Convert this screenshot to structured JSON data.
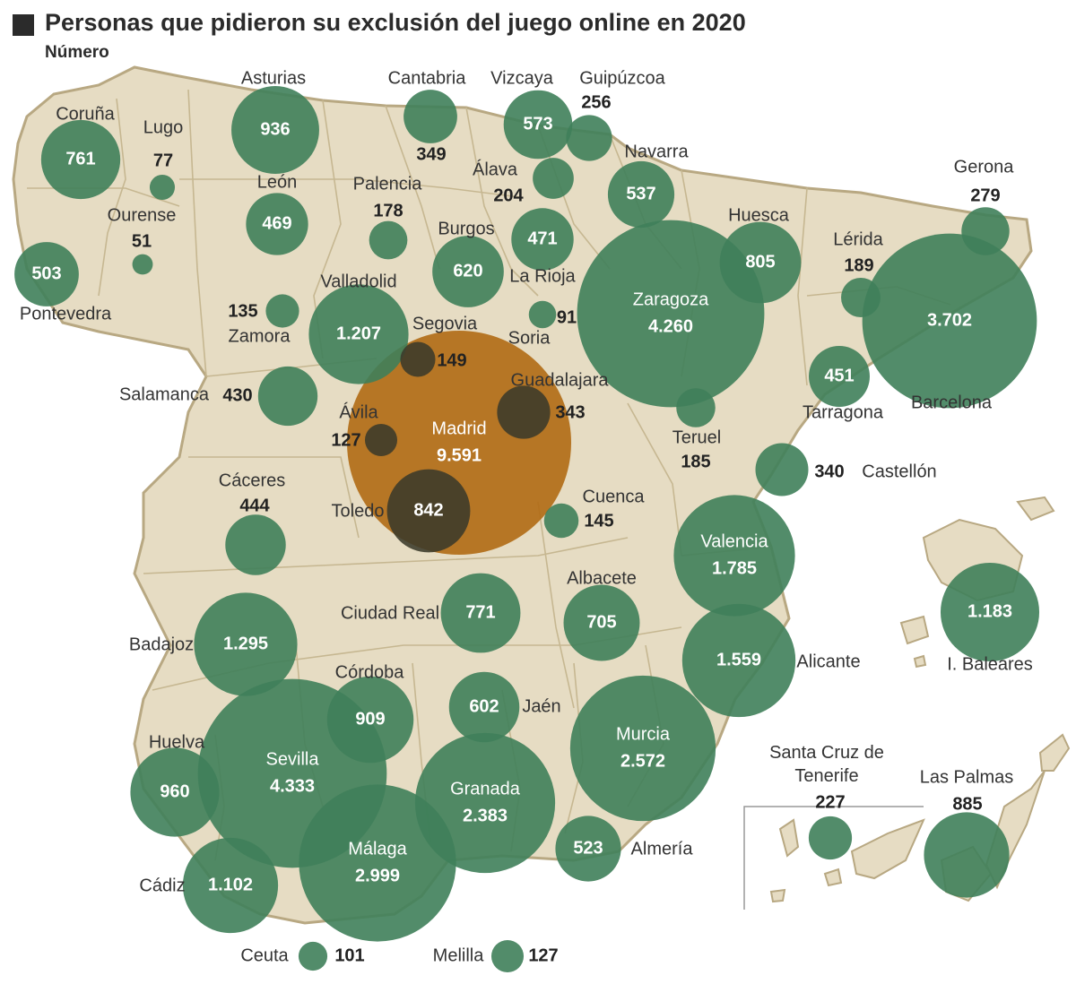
{
  "header": {
    "title": "Personas que pidieron su exclusión del juego online en 2020",
    "subtitle": "Número"
  },
  "colors": {
    "land": "#e6dcc3",
    "border": "#b8a882",
    "bubble": "#3f7f5a",
    "highlight": "#b06a14",
    "dark_bubble": "#3b3a2a"
  },
  "provinces": [
    {
      "id": "coruna",
      "name": "Coruña",
      "value": 761,
      "value_label": "761",
      "inside": true
    },
    {
      "id": "lugo",
      "name": "Lugo",
      "value": 77,
      "value_label": "77",
      "inside": false
    },
    {
      "id": "ourense",
      "name": "Ourense",
      "value": 51,
      "value_label": "51",
      "inside": false
    },
    {
      "id": "pontevedra",
      "name": "Pontevedra",
      "value": 503,
      "value_label": "503",
      "inside": true
    },
    {
      "id": "asturias",
      "name": "Asturias",
      "value": 936,
      "value_label": "936",
      "inside": true
    },
    {
      "id": "cantabria",
      "name": "Cantabria",
      "value": 349,
      "value_label": "349",
      "inside": false
    },
    {
      "id": "vizcaya",
      "name": "Vizcaya",
      "value": 573,
      "value_label": "573",
      "inside": true
    },
    {
      "id": "guipuzcoa",
      "name": "Guipúzcoa",
      "value": 256,
      "value_label": "256",
      "inside": false
    },
    {
      "id": "alava",
      "name": "Álava",
      "value": 204,
      "value_label": "204",
      "inside": false
    },
    {
      "id": "navarra",
      "name": "Navarra",
      "value": 537,
      "value_label": "537",
      "inside": true
    },
    {
      "id": "leon",
      "name": "León",
      "value": 469,
      "value_label": "469",
      "inside": true
    },
    {
      "id": "palencia",
      "name": "Palencia",
      "value": 178,
      "value_label": "178",
      "inside": false
    },
    {
      "id": "burgos",
      "name": "Burgos",
      "value": 620,
      "value_label": "620",
      "inside": true
    },
    {
      "id": "larioja",
      "name": "La Rioja",
      "value": 471,
      "value_label": "471",
      "inside": true
    },
    {
      "id": "gerona",
      "name": "Gerona",
      "value": 279,
      "value_label": "279",
      "inside": false
    },
    {
      "id": "huesca",
      "name": "Huesca",
      "value": 805,
      "value_label": "805",
      "inside": true
    },
    {
      "id": "lerida",
      "name": "Lérida",
      "value": 189,
      "value_label": "189",
      "inside": false
    },
    {
      "id": "zaragoza",
      "name": "Zaragoza",
      "value": 4260,
      "value_label": "4.260",
      "inside": true
    },
    {
      "id": "barcelona",
      "name": "Barcelona",
      "value": 3702,
      "value_label": "3.702",
      "inside": true
    },
    {
      "id": "zamora",
      "name": "Zamora",
      "value": 135,
      "value_label": "135",
      "inside": false
    },
    {
      "id": "valladolid",
      "name": "Valladolid",
      "value": 1207,
      "value_label": "1.207",
      "inside": true
    },
    {
      "id": "segovia",
      "name": "Segovia",
      "value": 149,
      "value_label": "149",
      "inside": false
    },
    {
      "id": "soria",
      "name": "Soria",
      "value": 91,
      "value_label": "91",
      "inside": false
    },
    {
      "id": "salamanca",
      "name": "Salamanca",
      "value": 430,
      "value_label": "430",
      "inside": false
    },
    {
      "id": "avila",
      "name": "Ávila",
      "value": 127,
      "value_label": "127",
      "inside": false
    },
    {
      "id": "madrid",
      "name": "Madrid",
      "value": 9591,
      "value_label": "9.591",
      "inside": true
    },
    {
      "id": "guadalajara",
      "name": "Guadalajara",
      "value": 343,
      "value_label": "343",
      "inside": false
    },
    {
      "id": "teruel",
      "name": "Teruel",
      "value": 185,
      "value_label": "185",
      "inside": false
    },
    {
      "id": "tarragona",
      "name": "Tarragona",
      "value": 451,
      "value_label": "451",
      "inside": true
    },
    {
      "id": "castellon",
      "name": "Castellón",
      "value": 340,
      "value_label": "340",
      "inside": false
    },
    {
      "id": "caceres",
      "name": "Cáceres",
      "value": 444,
      "value_label": "444",
      "inside": false
    },
    {
      "id": "toledo",
      "name": "Toledo",
      "value": 842,
      "value_label": "842",
      "inside": true
    },
    {
      "id": "cuenca",
      "name": "Cuenca",
      "value": 145,
      "value_label": "145",
      "inside": false
    },
    {
      "id": "valencia",
      "name": "Valencia",
      "value": 1785,
      "value_label": "1.785",
      "inside": true
    },
    {
      "id": "baleares",
      "name": "I. Baleares",
      "value": 1183,
      "value_label": "1.183",
      "inside": true
    },
    {
      "id": "badajoz",
      "name": "Badajoz",
      "value": 1295,
      "value_label": "1.295",
      "inside": true
    },
    {
      "id": "ciudadreal",
      "name": "Ciudad Real",
      "value": 771,
      "value_label": "771",
      "inside": true
    },
    {
      "id": "albacete",
      "name": "Albacete",
      "value": 705,
      "value_label": "705",
      "inside": true
    },
    {
      "id": "alicante",
      "name": "Alicante",
      "value": 1559,
      "value_label": "1.559",
      "inside": true
    },
    {
      "id": "cordoba",
      "name": "Córdoba",
      "value": 909,
      "value_label": "909",
      "inside": true
    },
    {
      "id": "jaen",
      "name": "Jaén",
      "value": 602,
      "value_label": "602",
      "inside": true
    },
    {
      "id": "huelva",
      "name": "Huelva",
      "value": 960,
      "value_label": "960",
      "inside": true
    },
    {
      "id": "sevilla",
      "name": "Sevilla",
      "value": 4333,
      "value_label": "4.333",
      "inside": true
    },
    {
      "id": "murcia",
      "name": "Murcia",
      "value": 2572,
      "value_label": "2.572",
      "inside": true
    },
    {
      "id": "granada",
      "name": "Granada",
      "value": 2383,
      "value_label": "2.383",
      "inside": true
    },
    {
      "id": "malaga",
      "name": "Málaga",
      "value": 2999,
      "value_label": "2.999",
      "inside": true
    },
    {
      "id": "almeria",
      "name": "Almería",
      "value": 523,
      "value_label": "523",
      "inside": true
    },
    {
      "id": "cadiz",
      "name": "Cádiz",
      "value": 1102,
      "value_label": "1.102",
      "inside": true
    },
    {
      "id": "tenerife",
      "name": "Santa Cruz de Tenerife",
      "value": 227,
      "value_label": "227",
      "inside": false
    },
    {
      "id": "laspalmas",
      "name": "Las Palmas",
      "value": 885,
      "value_label": "885",
      "inside": false
    },
    {
      "id": "ceuta",
      "name": "Ceuta",
      "value": 101,
      "value_label": "101",
      "inside": false
    },
    {
      "id": "melilla",
      "name": "Melilla",
      "value": 127,
      "value_label": "127",
      "inside": false
    }
  ]
}
